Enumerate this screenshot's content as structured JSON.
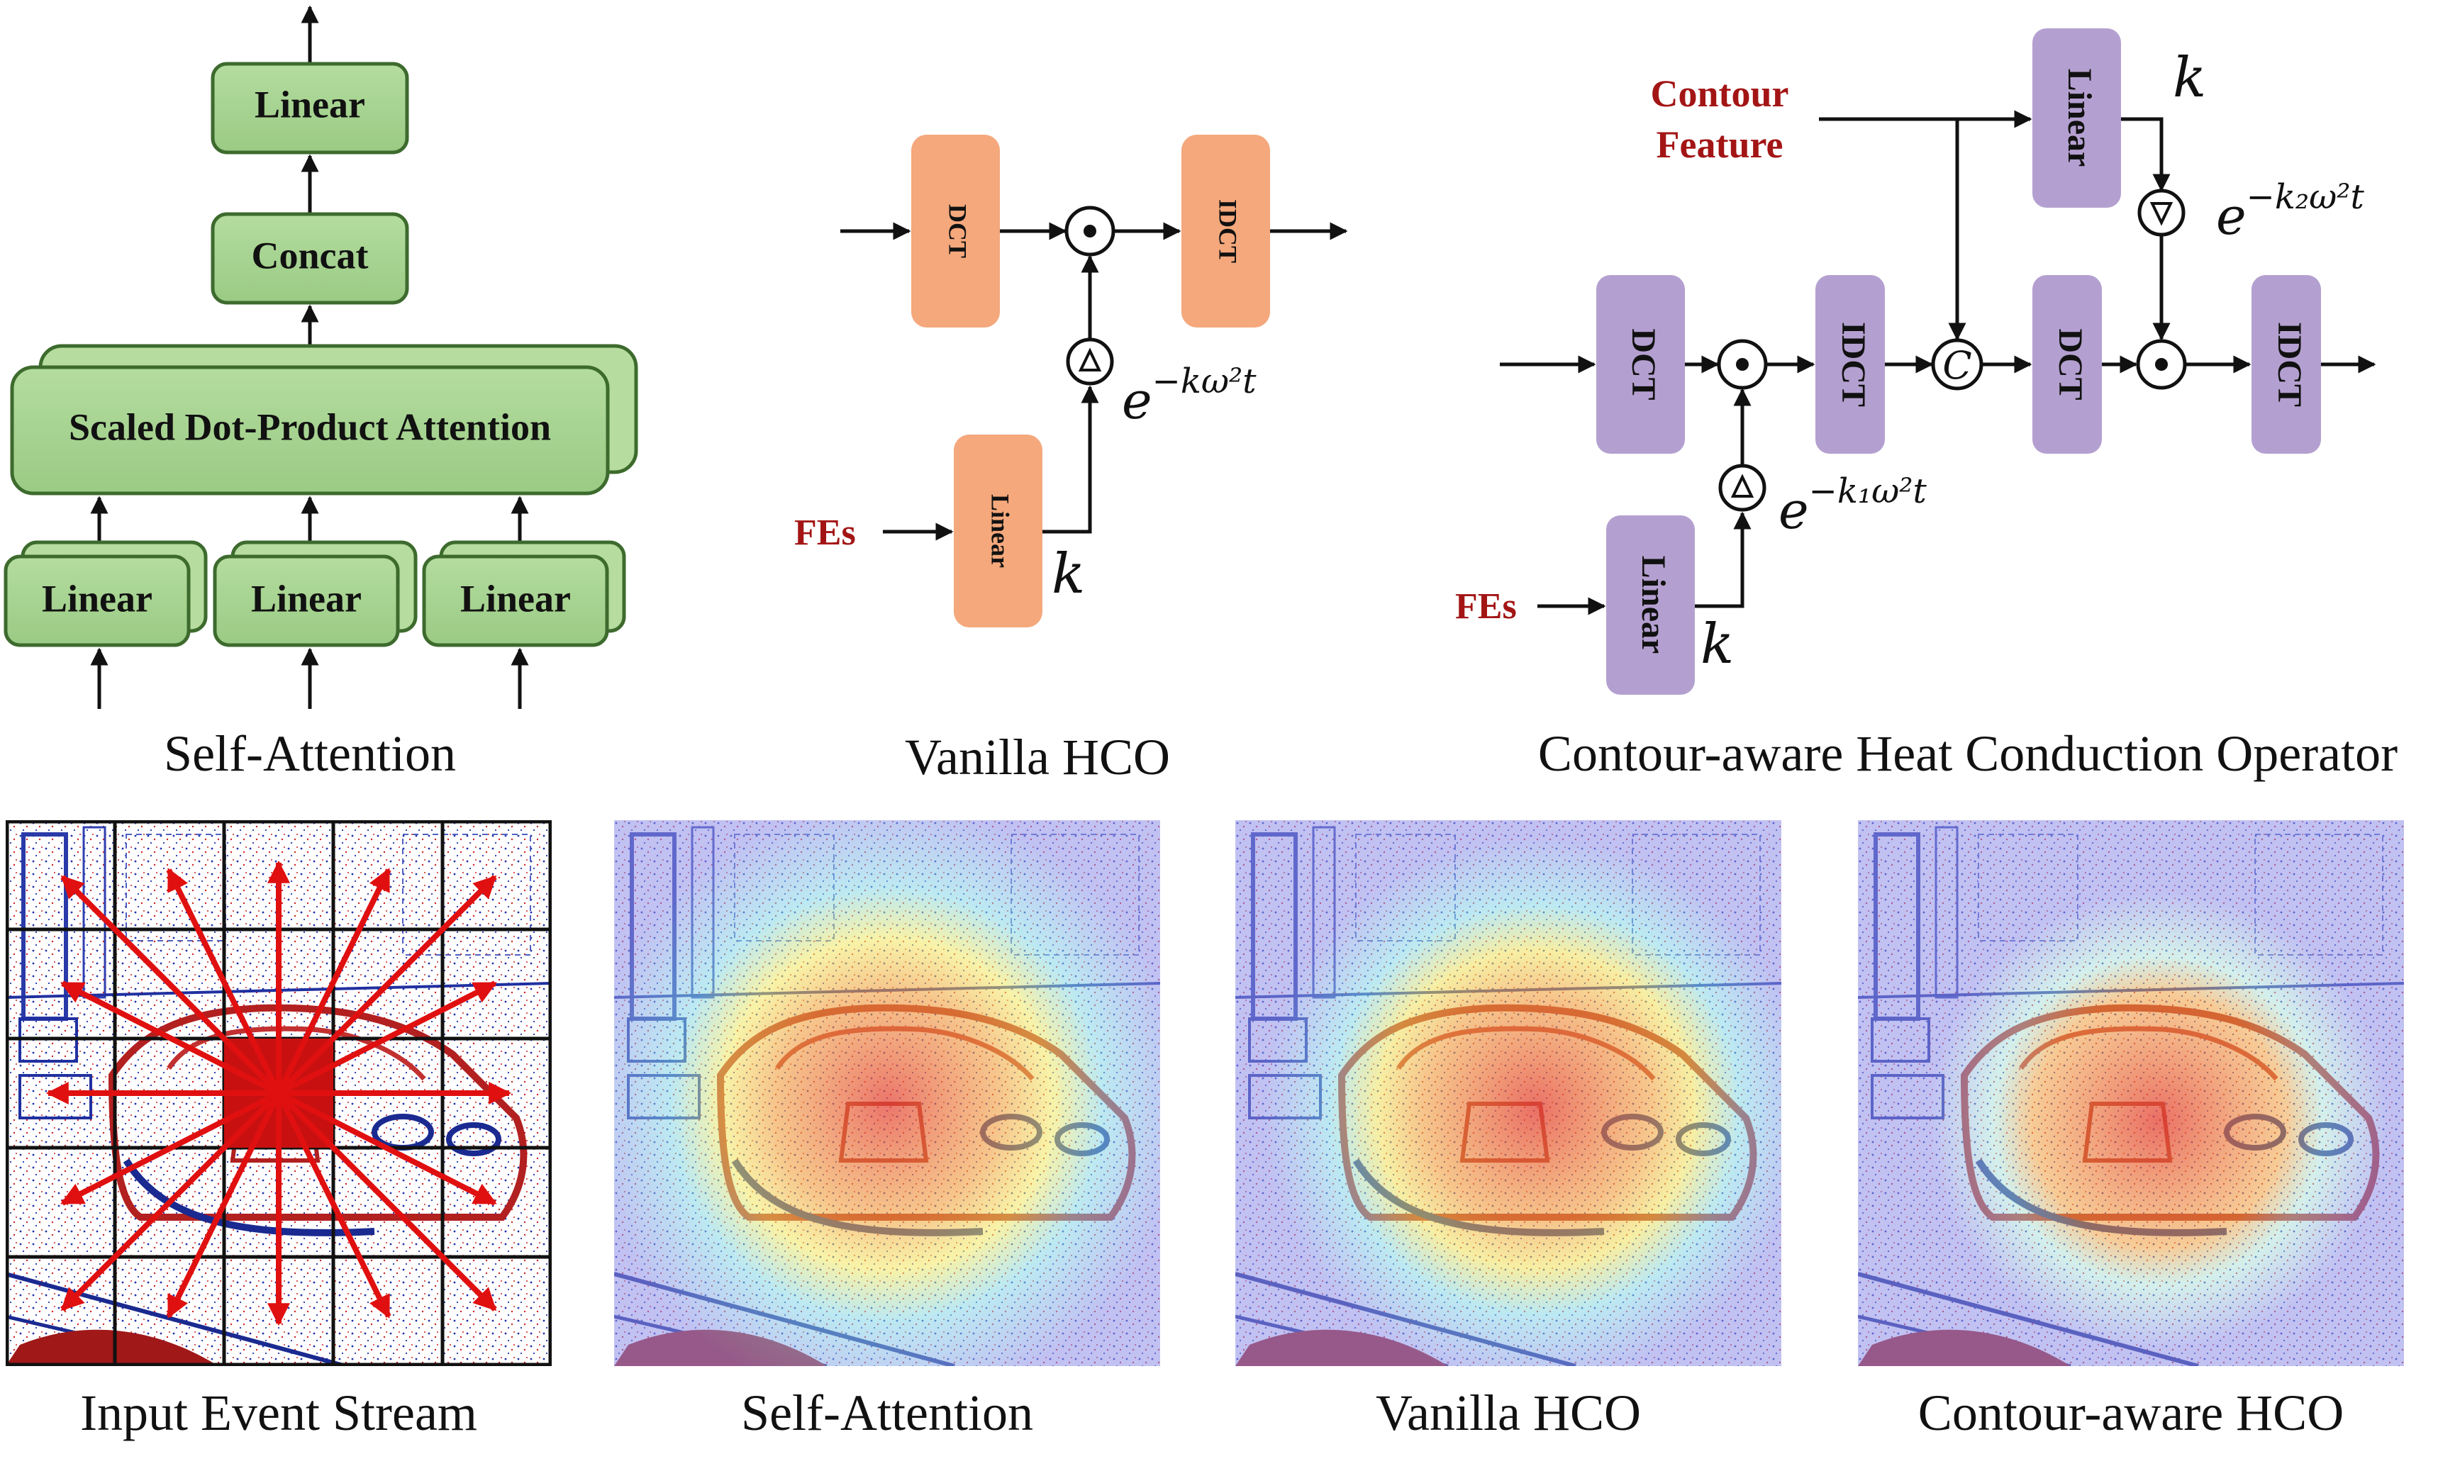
{
  "self_attention_diagram": {
    "output_linear": "Linear",
    "concat": "Concat",
    "attention": "Scaled Dot-Product Attention",
    "input_linears": [
      "Linear",
      "Linear",
      "Linear"
    ],
    "caption": "Self-Attention"
  },
  "vanilla_hco_diagram": {
    "dct": "DCT",
    "idct": "IDCT",
    "linear": "Linear",
    "input": "FEs",
    "k": "k",
    "decay": "e",
    "decay_exponent": "−kω²t",
    "caption": "Vanilla HCO"
  },
  "contour_hco_diagram": {
    "contour_feature": [
      "Contour",
      "Feature"
    ],
    "linear_top": "Linear",
    "k_top": "k",
    "decay_top": "e",
    "decay_top_exponent": "−k₂ω²t",
    "dct1": "DCT",
    "idct1": "IDCT",
    "concat_symbol": "C",
    "dct2": "DCT",
    "idct2": "IDCT",
    "decay_bottom": "e",
    "decay_bottom_exponent": "−k₁ω²t",
    "linear_bottom": "Linear",
    "input": "FEs",
    "k_bottom": "k",
    "caption": "Contour-aware Heat Conduction Operator"
  },
  "image_panels": [
    {
      "caption": "Input Event Stream"
    },
    {
      "caption": "Self-Attention"
    },
    {
      "caption": "Vanilla HCO"
    },
    {
      "caption": "Contour-aware HCO"
    }
  ],
  "colors": {
    "green_fill": "#a8d492",
    "green_stroke": "#3d6b2e",
    "orange_fill": "#f4a87c",
    "purple_fill": "#b4a0d0",
    "label_red": "#a31515",
    "arrow_red": "#e01010"
  }
}
